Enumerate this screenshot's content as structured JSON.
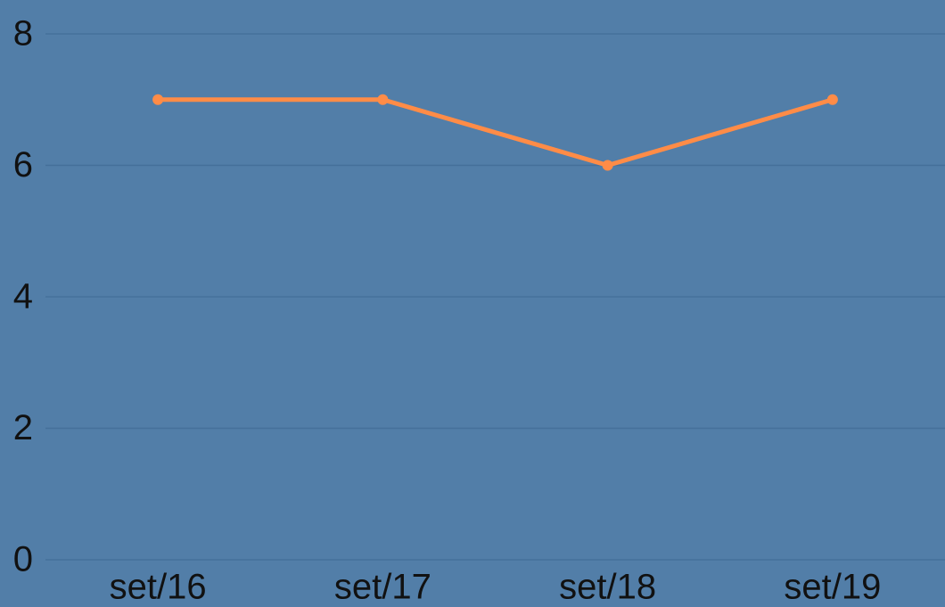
{
  "chart_data": {
    "type": "line",
    "categories": [
      "set/16",
      "set/17",
      "set/18",
      "set/19"
    ],
    "series": [
      {
        "name": null,
        "color": "#ff8c47",
        "values": [
          7,
          7,
          6,
          7
        ]
      }
    ],
    "ylim": [
      0,
      8
    ],
    "yticks": [
      0,
      2,
      4,
      6,
      8
    ],
    "grid": true,
    "background": "#527ea8"
  }
}
